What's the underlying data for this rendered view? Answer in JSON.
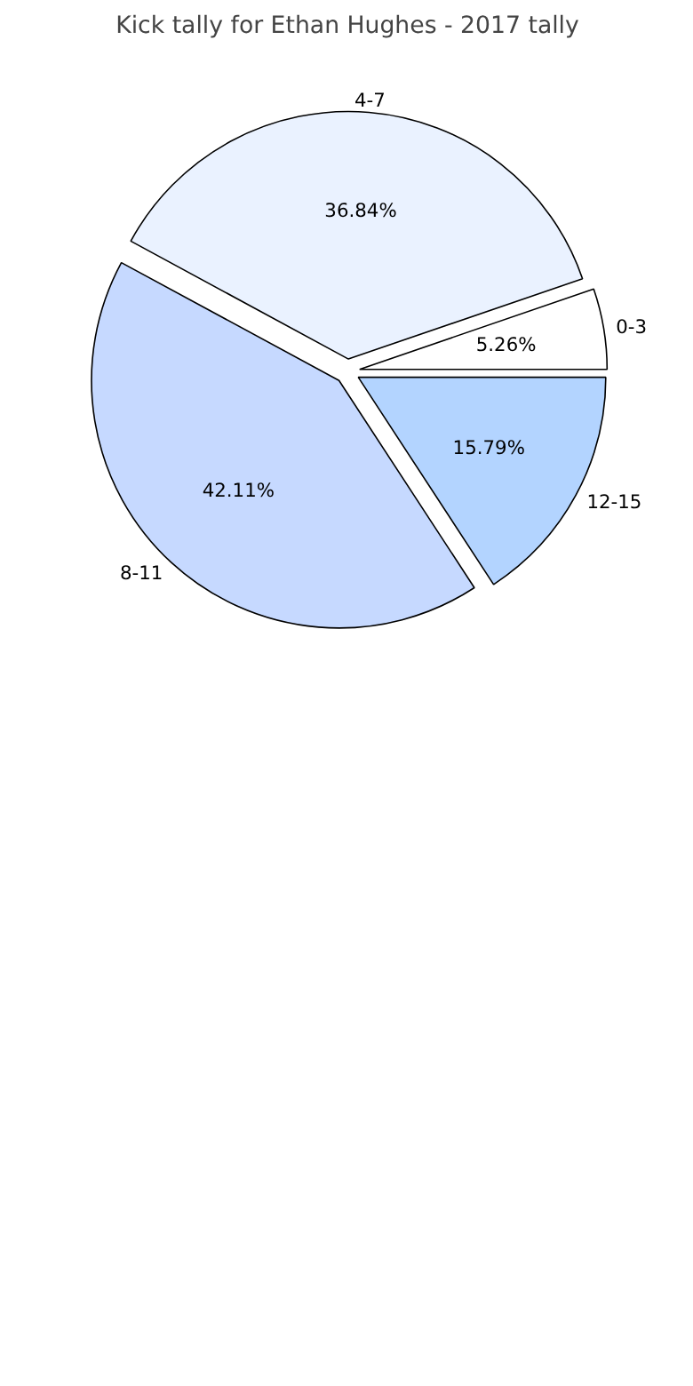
{
  "chart_data": {
    "type": "pie",
    "title": "Kick tally for Ethan Hughes - 2017 tally",
    "categories": [
      "0-3",
      "4-7",
      "8-11",
      "12-15"
    ],
    "values": [
      5.26,
      36.84,
      42.11,
      15.79
    ],
    "colors": [
      "#ffffff",
      "#eaf2ff",
      "#c6d9ff",
      "#b3d4ff"
    ],
    "value_labels": [
      "5.26%",
      "36.84%",
      "42.11%",
      "15.79%"
    ]
  }
}
